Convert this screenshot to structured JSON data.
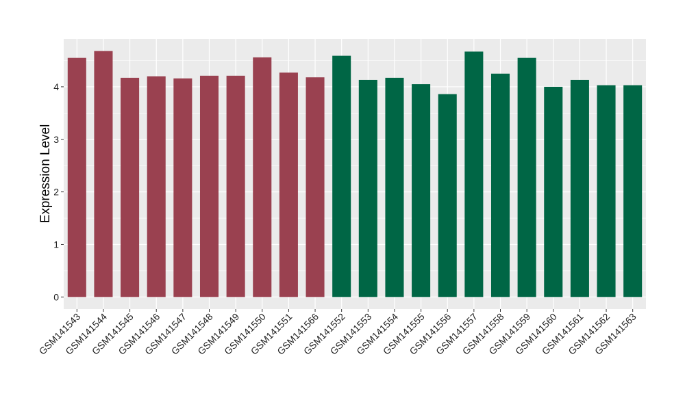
{
  "chart_data": {
    "type": "bar",
    "title": "",
    "xlabel": "",
    "ylabel": "Expression Level",
    "ylim": [
      -0.23,
      4.91
    ],
    "yticks": [
      0,
      1,
      2,
      3,
      4
    ],
    "grid": true,
    "legend": "none",
    "categories": [
      "GSM141543",
      "GSM141544",
      "GSM141545",
      "GSM141546",
      "GSM141547",
      "GSM141548",
      "GSM141549",
      "GSM141550",
      "GSM141551",
      "GSM141566",
      "GSM141552",
      "GSM141553",
      "GSM141554",
      "GSM141555",
      "GSM141556",
      "GSM141557",
      "GSM141558",
      "GSM141559",
      "GSM141560",
      "GSM141561",
      "GSM141562",
      "GSM141563"
    ],
    "values": [
      4.55,
      4.68,
      4.17,
      4.2,
      4.16,
      4.21,
      4.21,
      4.56,
      4.27,
      4.18,
      4.59,
      4.13,
      4.17,
      4.05,
      3.86,
      4.67,
      4.25,
      4.55,
      4.0,
      4.13,
      4.03,
      4.03
    ],
    "groups": [
      0,
      0,
      0,
      0,
      0,
      0,
      0,
      0,
      0,
      0,
      1,
      1,
      1,
      1,
      1,
      1,
      1,
      1,
      1,
      1,
      1,
      1
    ],
    "group_colors": [
      "#9A4150",
      "#006645"
    ]
  }
}
